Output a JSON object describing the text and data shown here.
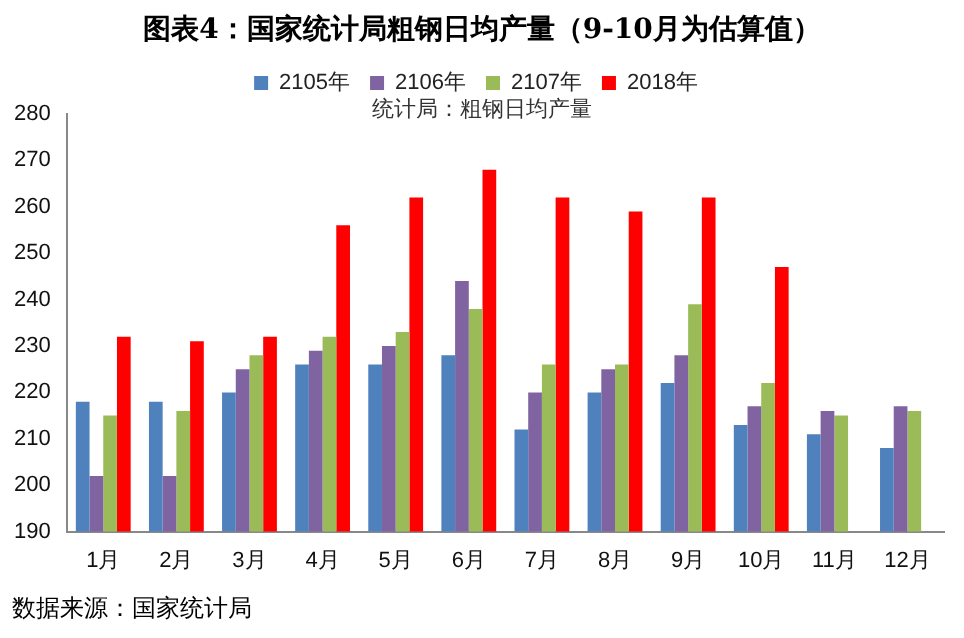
{
  "chart_data": {
    "type": "bar",
    "title": "图表4：国家统计局粗钢日均产量（9-10月为估算值）",
    "categories": [
      "1月",
      "2月",
      "3月",
      "4月",
      "5月",
      "6月",
      "7月",
      "8月",
      "9月",
      "10月",
      "11月",
      "12月"
    ],
    "series": [
      {
        "name": "2105年",
        "color": "#4f81bd",
        "values": [
          218,
          218,
          220,
          226,
          226,
          228,
          212,
          220,
          222,
          213,
          211,
          208
        ]
      },
      {
        "name": "2106年",
        "color": "#8064a2",
        "values": [
          202,
          202,
          225,
          229,
          230,
          244,
          220,
          225,
          228,
          217,
          216,
          217
        ]
      },
      {
        "name": "2107年",
        "color": "#9bbb59",
        "values": [
          215,
          216,
          228,
          232,
          233,
          238,
          226,
          226,
          239,
          222,
          215,
          216
        ]
      },
      {
        "name": "2018年",
        "color": "#ff0000",
        "values": [
          232,
          231,
          232,
          256,
          262,
          268,
          262,
          259,
          262,
          247,
          null,
          null
        ]
      }
    ],
    "ylim": [
      190,
      280
    ],
    "yticks": [
      190,
      200,
      210,
      220,
      230,
      240,
      250,
      260,
      270,
      280
    ],
    "grid": false,
    "legend": "top",
    "annotations": [
      "统计局：粗钢日均产量",
      "数据来源：国家统计局"
    ]
  }
}
